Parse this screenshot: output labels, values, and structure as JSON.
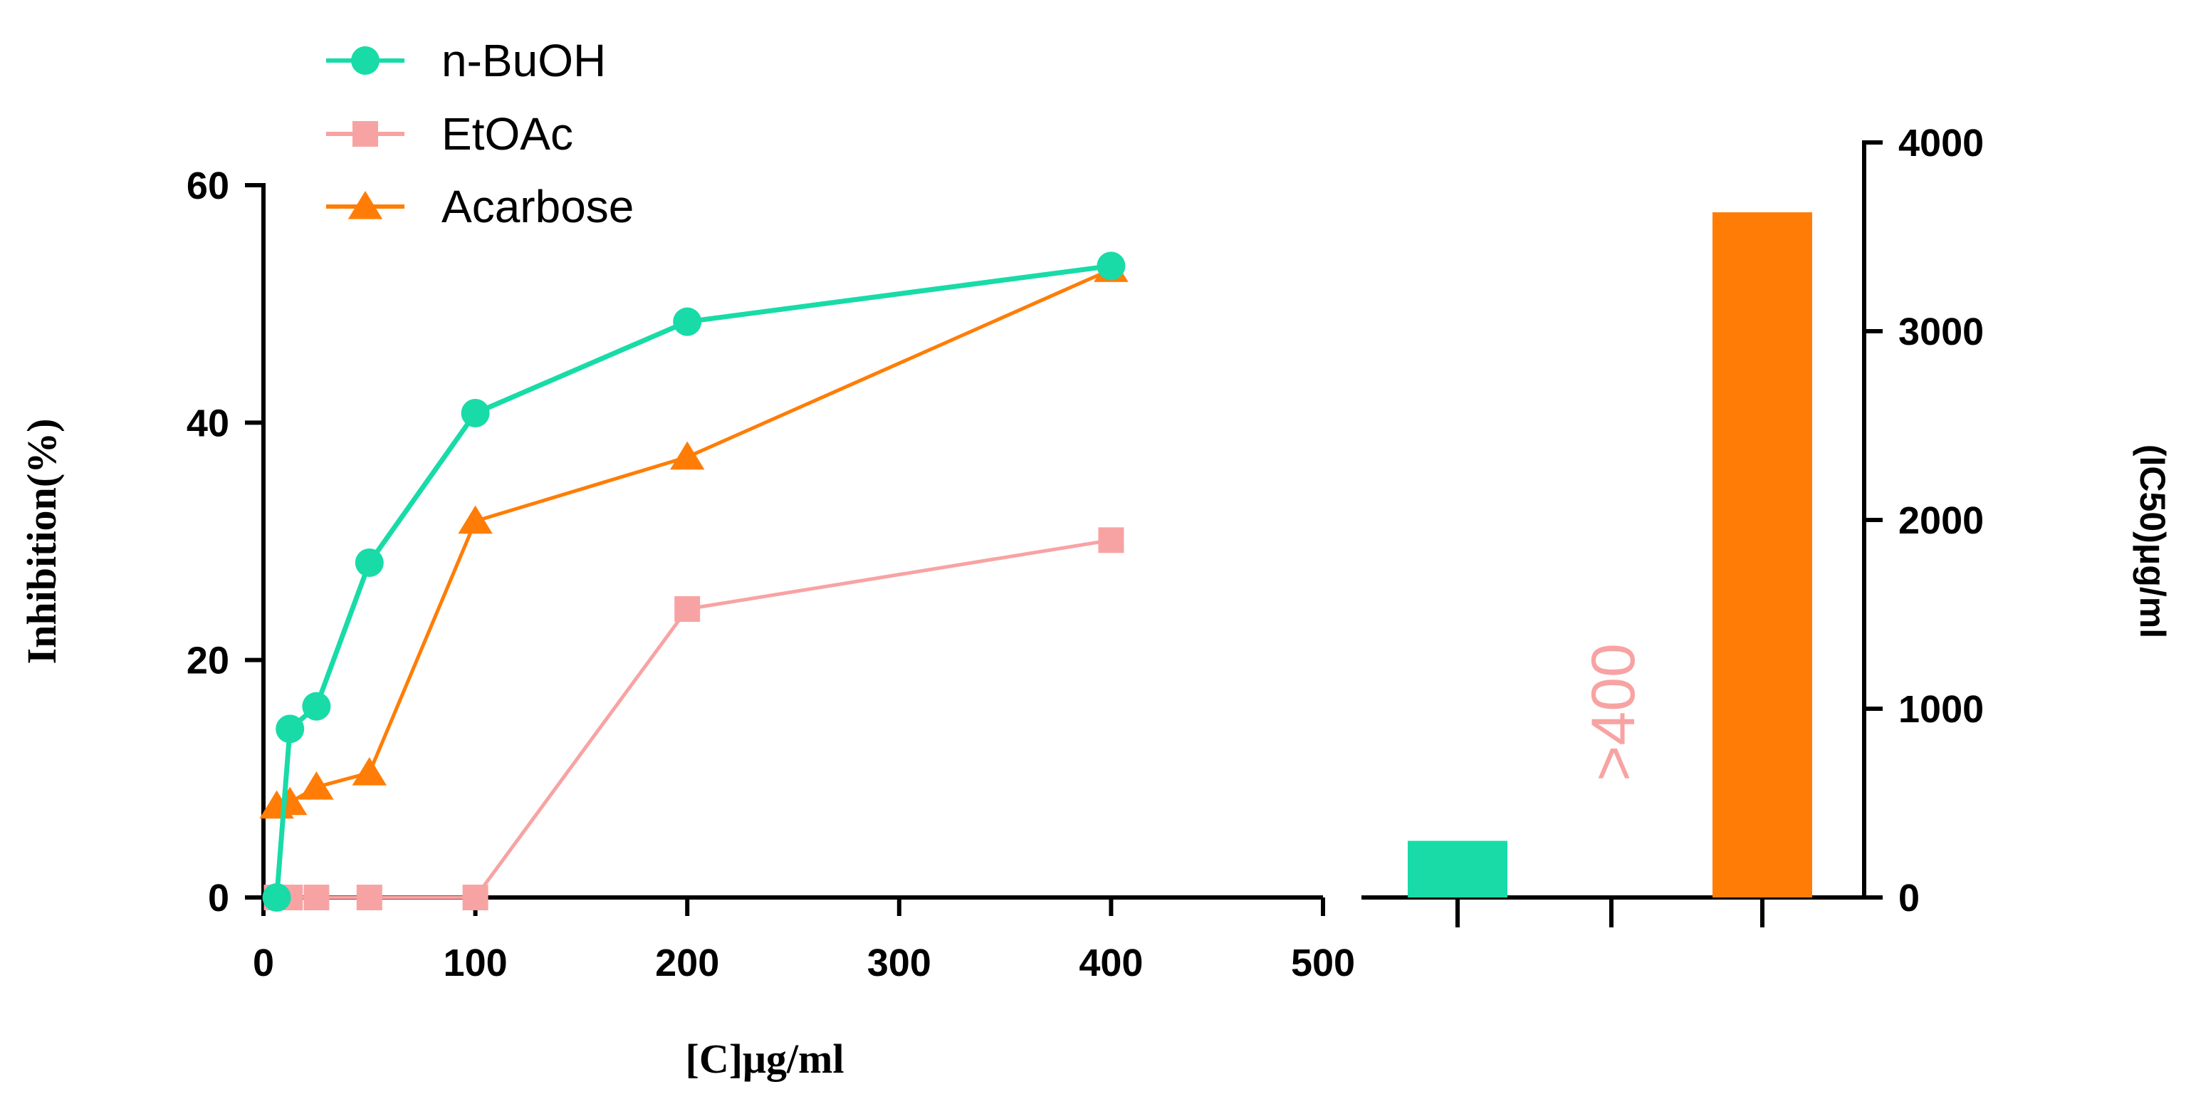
{
  "colors": {
    "nbuoh": "#18dba8",
    "etoac": "#f8a3a3",
    "acarbose": "#ff7d06"
  },
  "chart_data": [
    {
      "type": "line",
      "xlabel": "[C]μg/ml",
      "ylabel": "Inhibition(%)",
      "xlim": [
        0,
        500
      ],
      "ylim": [
        0,
        60
      ],
      "xticks": [
        0,
        100,
        200,
        300,
        400,
        500
      ],
      "yticks": [
        0,
        20,
        40,
        60
      ],
      "legend_position": "top-left",
      "series": [
        {
          "name": "n-BuOH",
          "marker": "circle",
          "x": [
            6.25,
            12.5,
            25,
            50,
            100,
            200,
            400
          ],
          "y": [
            0,
            14.2,
            16.1,
            28.2,
            40.8,
            48.5,
            53.2
          ]
        },
        {
          "name": "EtOAc",
          "marker": "square",
          "x": [
            6.25,
            12.5,
            25,
            50,
            100,
            200,
            400
          ],
          "y": [
            0,
            0,
            0,
            0,
            0,
            24.3,
            30.1
          ]
        },
        {
          "name": "Acarbose",
          "marker": "triangle",
          "x": [
            6.25,
            12.5,
            25,
            50,
            100,
            200,
            400
          ],
          "y": [
            7.7,
            8.0,
            9.3,
            10.5,
            31.7,
            37.1,
            52.9
          ]
        }
      ]
    },
    {
      "type": "bar",
      "ylabel": "(IC50)μg/ml",
      "ylim": [
        0,
        4000
      ],
      "yticks": [
        0,
        1000,
        2000,
        3000,
        4000
      ],
      "axis_side": "right",
      "categories": [
        "n-BuOH",
        "EtOAc",
        "Acarbose"
      ],
      "values": [
        300,
        null,
        3630
      ],
      "annotations": [
        {
          "category": "EtOAc",
          "text": ">400"
        }
      ]
    }
  ]
}
